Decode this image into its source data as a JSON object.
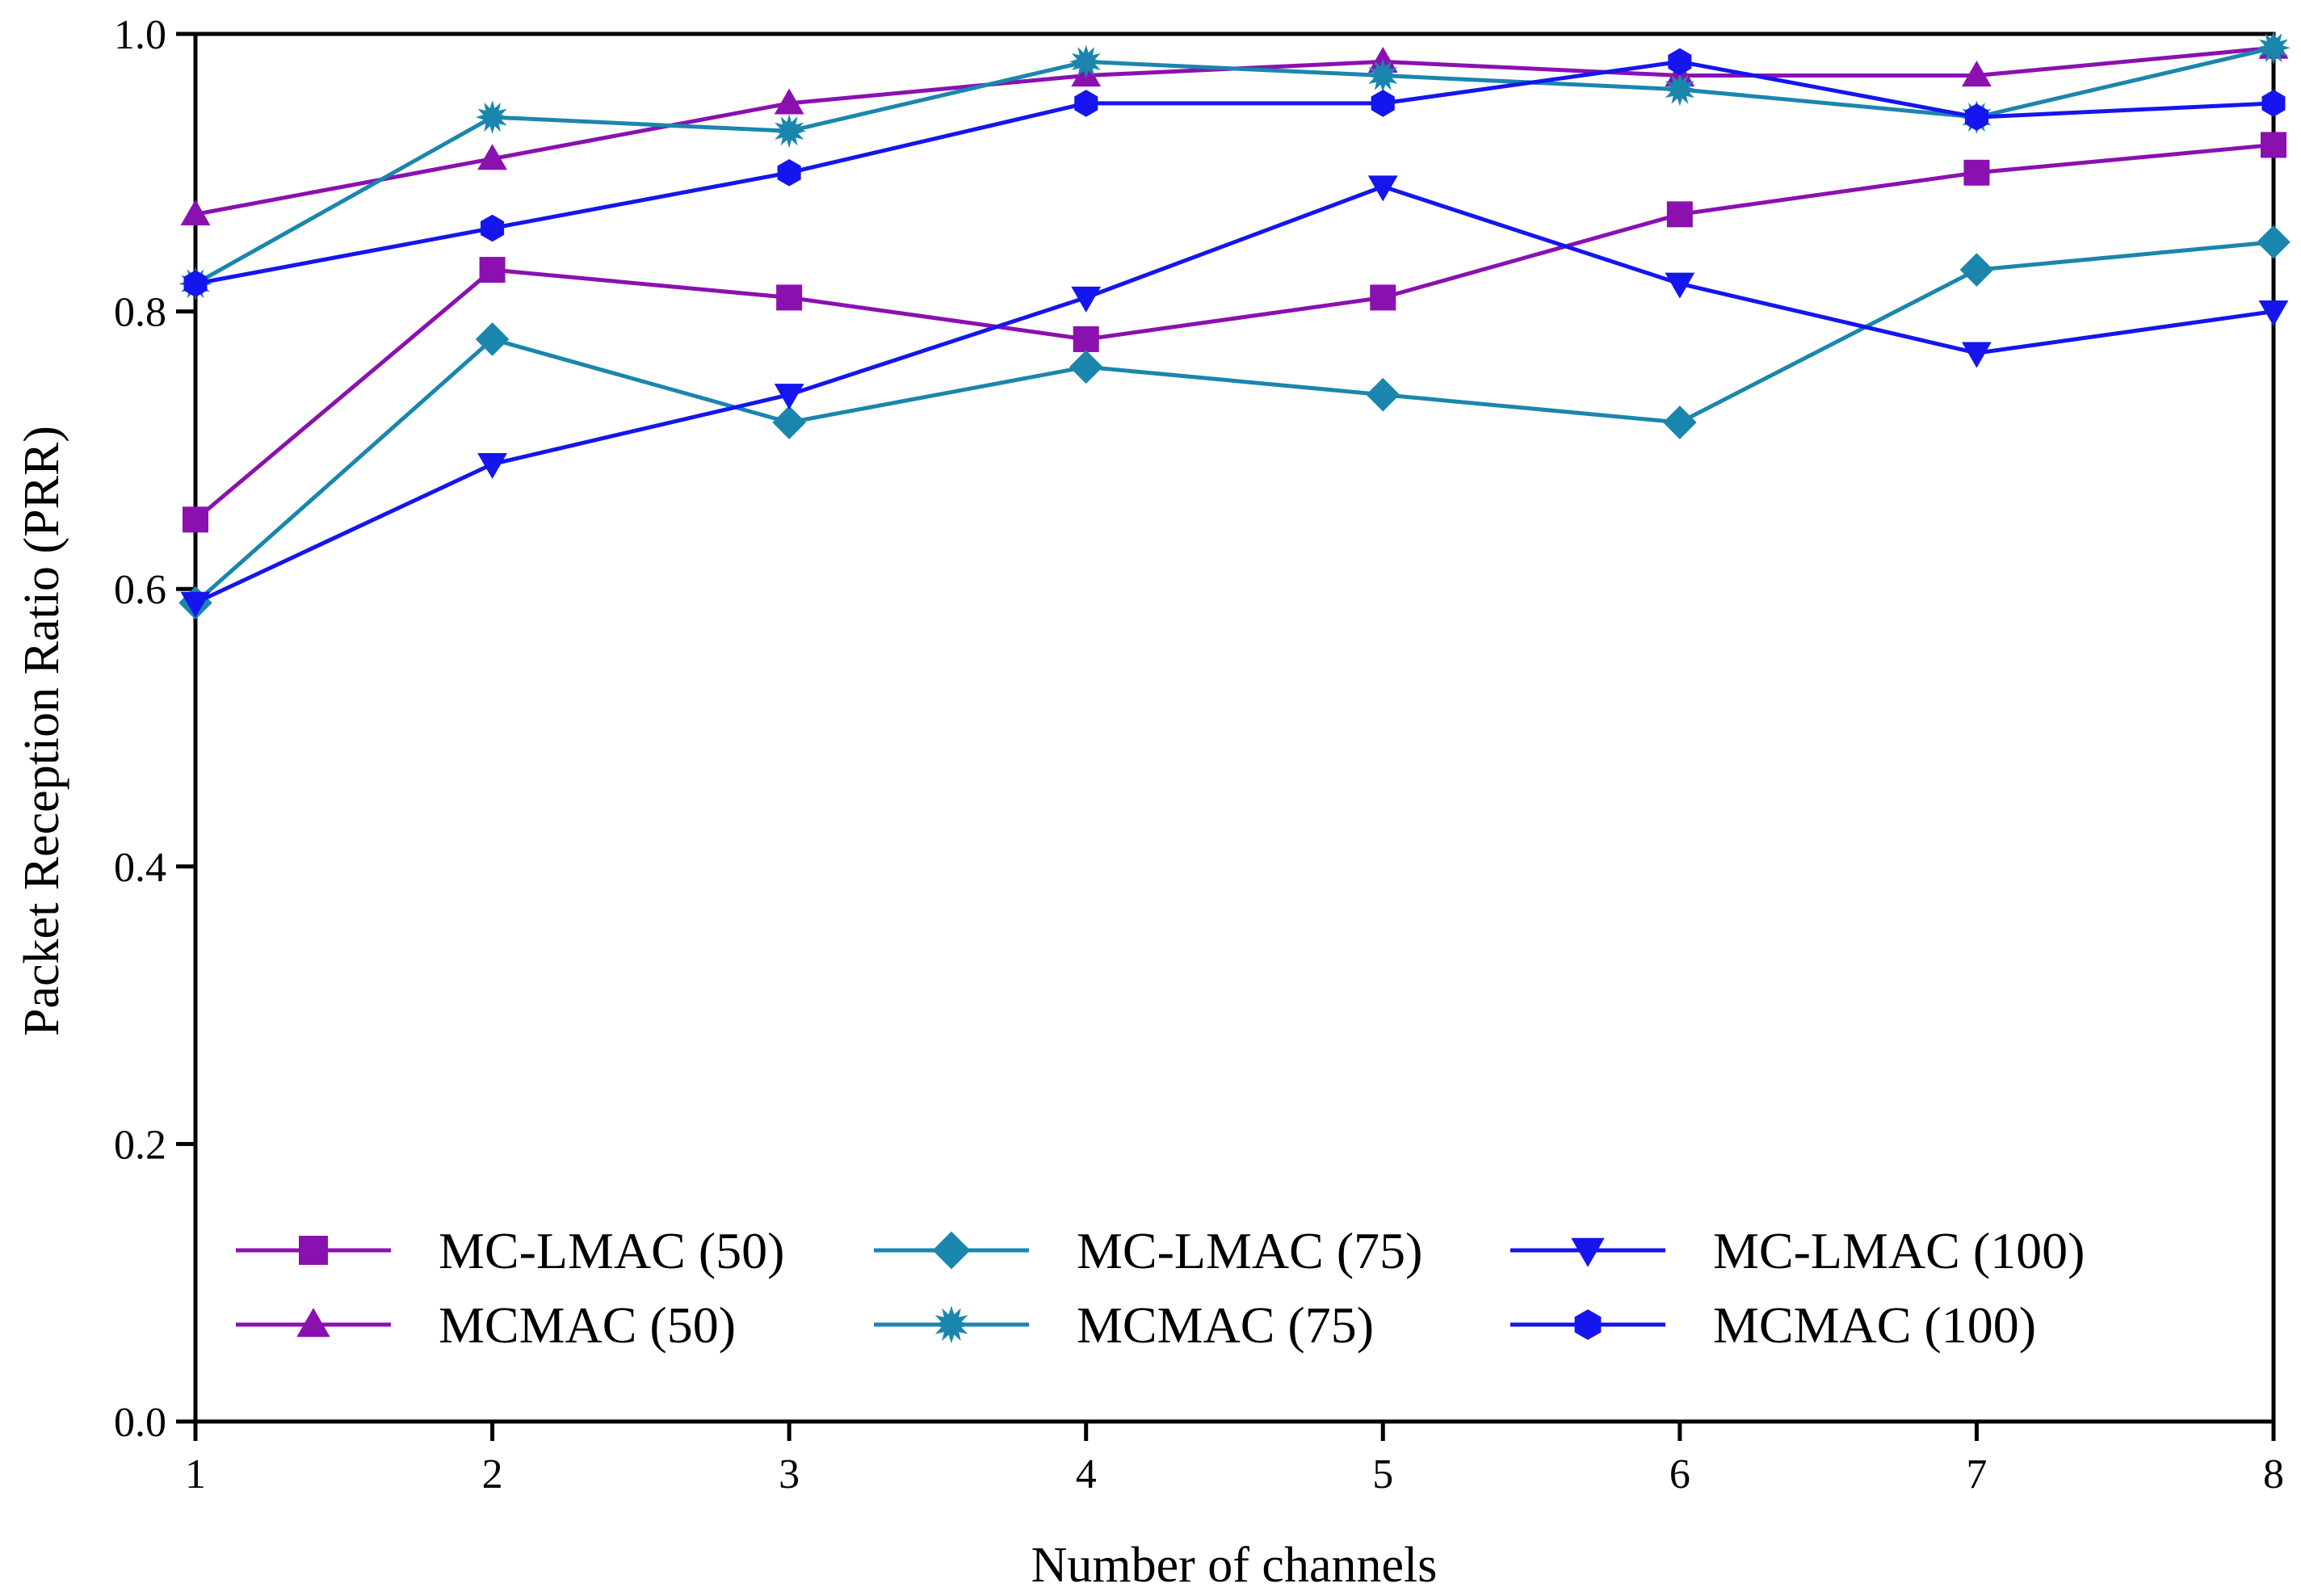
{
  "chart_data": {
    "type": "line",
    "title": "",
    "xlabel": "Number of channels",
    "ylabel": "Packet Reception Ratio (PRR)",
    "x": [
      1,
      2,
      3,
      4,
      5,
      6,
      7,
      8
    ],
    "xlim": [
      1,
      8
    ],
    "ylim": [
      0.0,
      1.0
    ],
    "x_ticks": [
      "1",
      "2",
      "3",
      "4",
      "5",
      "6",
      "7",
      "8"
    ],
    "y_ticks": [
      {
        "value": 0.0,
        "label": "0.0"
      },
      {
        "value": 0.2,
        "label": "0.2"
      },
      {
        "value": 0.4,
        "label": "0.4"
      },
      {
        "value": 0.6,
        "label": "0.6"
      },
      {
        "value": 0.8,
        "label": "0.8"
      },
      {
        "value": 1.0,
        "label": "1.0"
      }
    ],
    "grid": false,
    "legend_position": "bottom",
    "series": [
      {
        "name": "MC-LMAC (50)",
        "color": "#8b10b0",
        "marker": "square",
        "values": [
          0.65,
          0.83,
          0.81,
          0.78,
          0.81,
          0.87,
          0.9,
          0.92
        ]
      },
      {
        "name": "MCMAC (50)",
        "color": "#8b10b0",
        "marker": "triangle-up",
        "values": [
          0.87,
          0.91,
          0.95,
          0.97,
          0.98,
          0.97,
          0.97,
          0.99
        ]
      },
      {
        "name": "MC-LMAC (75)",
        "color": "#1a86ad",
        "marker": "diamond",
        "values": [
          0.59,
          0.78,
          0.72,
          0.76,
          0.74,
          0.72,
          0.83,
          0.85
        ]
      },
      {
        "name": "MCMAC (75)",
        "color": "#1a86ad",
        "marker": "star",
        "values": [
          0.82,
          0.94,
          0.93,
          0.98,
          0.97,
          0.96,
          0.94,
          0.99
        ]
      },
      {
        "name": "MC-LMAC (100)",
        "color": "#1515ee",
        "marker": "triangle-down",
        "values": [
          0.59,
          0.69,
          0.74,
          0.81,
          0.89,
          0.82,
          0.77,
          0.8
        ]
      },
      {
        "name": "MCMAC (100)",
        "color": "#1515ee",
        "marker": "hexagon",
        "values": [
          0.82,
          0.86,
          0.9,
          0.95,
          0.95,
          0.98,
          0.94,
          0.95
        ]
      }
    ]
  }
}
